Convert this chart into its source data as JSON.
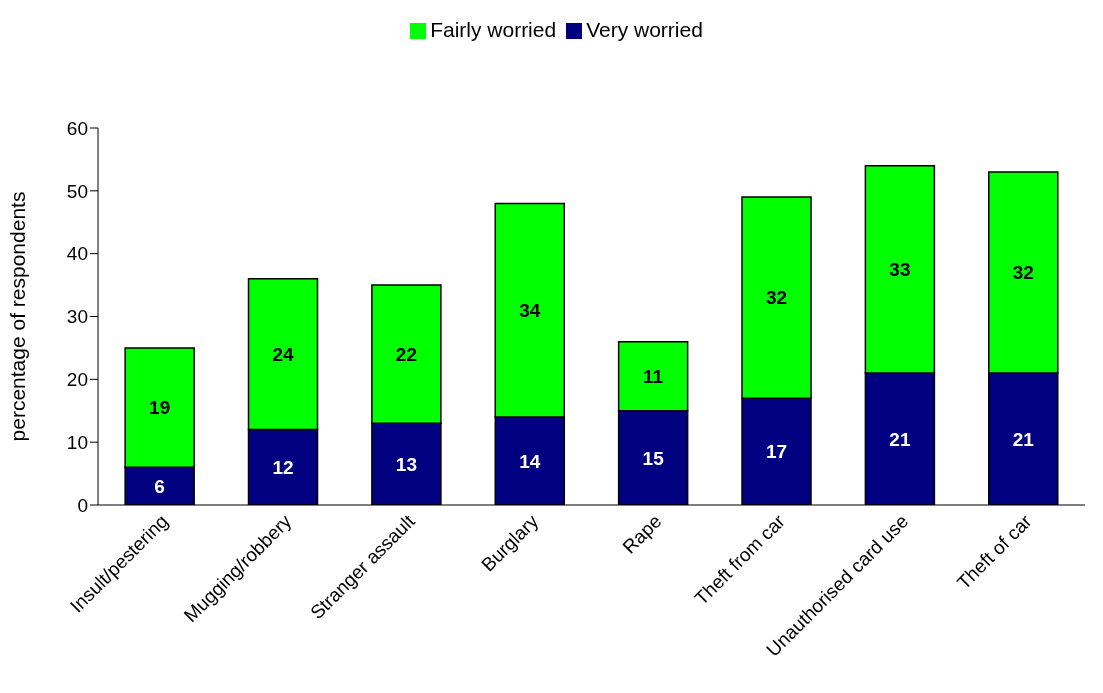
{
  "chart_data": {
    "type": "bar",
    "stacked": true,
    "ylabel": "percentage of respondents",
    "categories": [
      "Insult/pestering",
      "Mugging/robbery",
      "Stranger assault",
      "Burglary",
      "Rape",
      "Theft from car",
      "Unauthorised card use",
      "Theft of car"
    ],
    "series": [
      {
        "name": "Very worried",
        "color": "#000080",
        "values": [
          6,
          12,
          13,
          14,
          15,
          17,
          21,
          21
        ]
      },
      {
        "name": "Fairly worried",
        "color": "#00ff00",
        "values": [
          19,
          24,
          22,
          34,
          11,
          32,
          33,
          32
        ]
      }
    ],
    "ylim": [
      0,
      60
    ],
    "yticks": [
      0,
      10,
      20,
      30,
      40,
      50,
      60
    ],
    "grid": false,
    "legend": "top",
    "data_labels": true
  }
}
